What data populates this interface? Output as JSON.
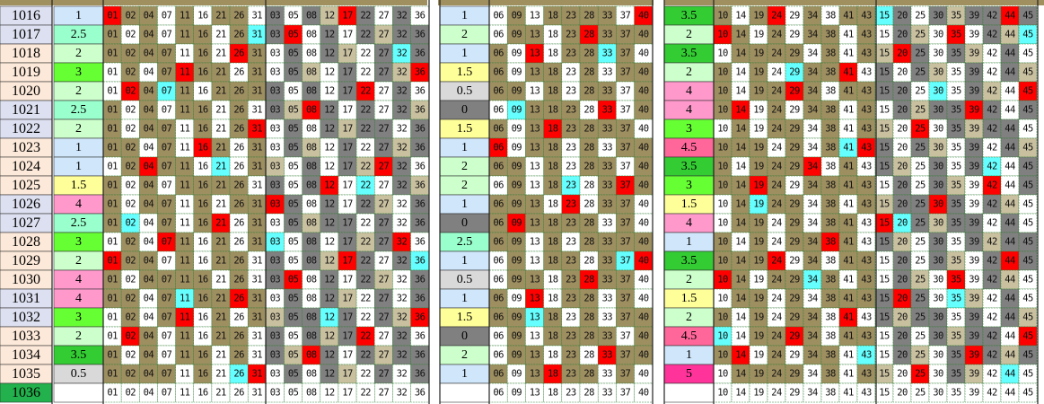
{
  "row_ids": [
    "1016",
    "1017",
    "1018",
    "1019",
    "1020",
    "1021",
    "1022",
    "1023",
    "1024",
    "1025",
    "1026",
    "1027",
    "1028",
    "1029",
    "1030",
    "1031",
    "1032",
    "1033",
    "1034",
    "1035",
    "1036"
  ],
  "blocks": [
    {
      "columns": [
        "01",
        "02",
        "04",
        "07",
        "11",
        "16",
        "21",
        "26",
        "31",
        "03",
        "05",
        "08",
        "12",
        "17",
        "22",
        "27",
        "32",
        "36"
      ],
      "values": [
        "1",
        "2.5",
        "2",
        "3",
        "2",
        "2.5",
        "2",
        "1",
        "1",
        "1.5",
        "4",
        "2.5",
        "3",
        "2",
        "4",
        "4",
        "3",
        "2",
        "3.5",
        "0.5"
      ]
    },
    {
      "columns": [
        "06",
        "09",
        "13",
        "18",
        "23",
        "28",
        "33",
        "37",
        "40"
      ],
      "values": [
        "1",
        "2",
        "1",
        "1.5",
        "0.5",
        "0",
        "1.5",
        "1",
        "2",
        "2",
        "1",
        "0",
        "2.5",
        "1",
        "0.5",
        "1",
        "1.5",
        "0",
        "2",
        "1"
      ]
    },
    {
      "columns": [
        "10",
        "14",
        "19",
        "24",
        "29",
        "34",
        "38",
        "41",
        "43",
        "15",
        "20",
        "25",
        "30",
        "35",
        "39",
        "42",
        "44",
        "45"
      ],
      "values": [
        "3.5",
        "2",
        "3.5",
        "2",
        "4",
        "4",
        "3",
        "4.5",
        "3.5",
        "3",
        "1.5",
        "4",
        "1",
        "3.5",
        "2",
        "1.5",
        "2",
        "4.5",
        "1",
        "5"
      ]
    }
  ]
}
